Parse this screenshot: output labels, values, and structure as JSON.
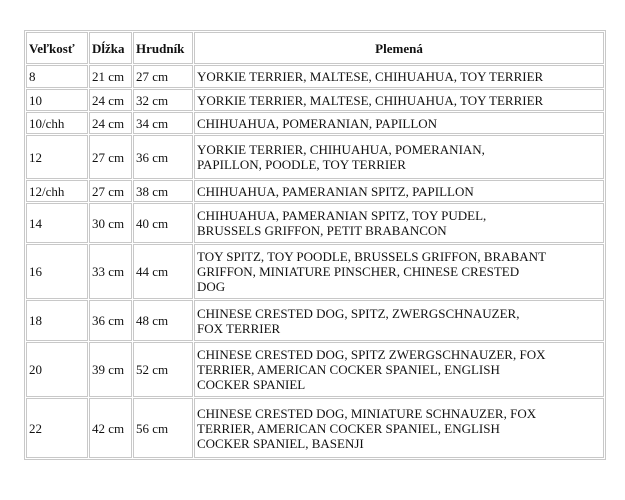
{
  "table": {
    "headers": [
      "Veľkosť",
      "Dĺžka",
      "Hrudník",
      "Plemená"
    ],
    "rows": [
      {
        "size": "8",
        "length": "21 cm",
        "chest": "27 cm",
        "breeds": [
          "YORKIE TERRIER, MALTESE, CHIHUAHUA, TOY TERRIER"
        ]
      },
      {
        "size": "10",
        "length": "24 cm",
        "chest": "32 cm",
        "breeds": [
          "YORKIE TERRIER, MALTESE, CHIHUAHUA, TOY TERRIER"
        ]
      },
      {
        "size": "10/chh",
        "length": "24 cm",
        "chest": "34 cm",
        "breeds": [
          "CHIHUAHUA, POMERANIAN, PAPILLON"
        ]
      },
      {
        "size": "12",
        "length": "27 cm",
        "chest": "36 cm",
        "breeds": [
          "YORKIE TERRIER, CHIHUAHUA, POMERANIAN,",
          "PAPILLON, POODLE, TOY TERRIER"
        ]
      },
      {
        "size": "12/chh",
        "length": "27 cm",
        "chest": "38 cm",
        "breeds": [
          "CHIHUAHUA, PAMERANIAN SPITZ, PAPILLON"
        ]
      },
      {
        "size": "14",
        "length": "30 cm",
        "chest": "40 cm",
        "breeds": [
          "CHIHUAHUA, PAMERANIAN SPITZ, TOY PUDEL,",
          "BRUSSELS GRIFFON, PETIT BRABANCON"
        ]
      },
      {
        "size": "16",
        "length": "33 cm",
        "chest": "44 cm",
        "breeds": [
          "TOY SPITZ, TOY POODLE, BRUSSELS GRIFFON, BRABANT",
          "GRIFFON, MINIATURE PINSCHER, CHINESE CRESTED",
          "DOG"
        ]
      },
      {
        "size": "18",
        "length": "36 cm",
        "chest": "48 cm",
        "breeds": [
          "CHINESE CRESTED DOG, SPITZ,  ZWERGSCHNAUZER,",
          "FOX TERRIER"
        ]
      },
      {
        "size": "20",
        "length": "39 cm",
        "chest": "52 cm",
        "breeds": [
          "CHINESE CRESTED DOG, SPITZ ZWERGSCHNAUZER, FOX",
          "TERRIER, AMERICAN COCKER SPANIEL, ENGLISH",
          "COCKER SPANIEL"
        ]
      },
      {
        "size": "22",
        "length": "42 cm",
        "chest": "56 cm",
        "breeds": [
          "CHINESE CRESTED DOG, MINIATURE SCHNAUZER, FOX",
          "TERRIER, AMERICAN COCKER SPANIEL, ENGLISH",
          "COCKER SPANIEL, BASENJI"
        ]
      }
    ]
  }
}
